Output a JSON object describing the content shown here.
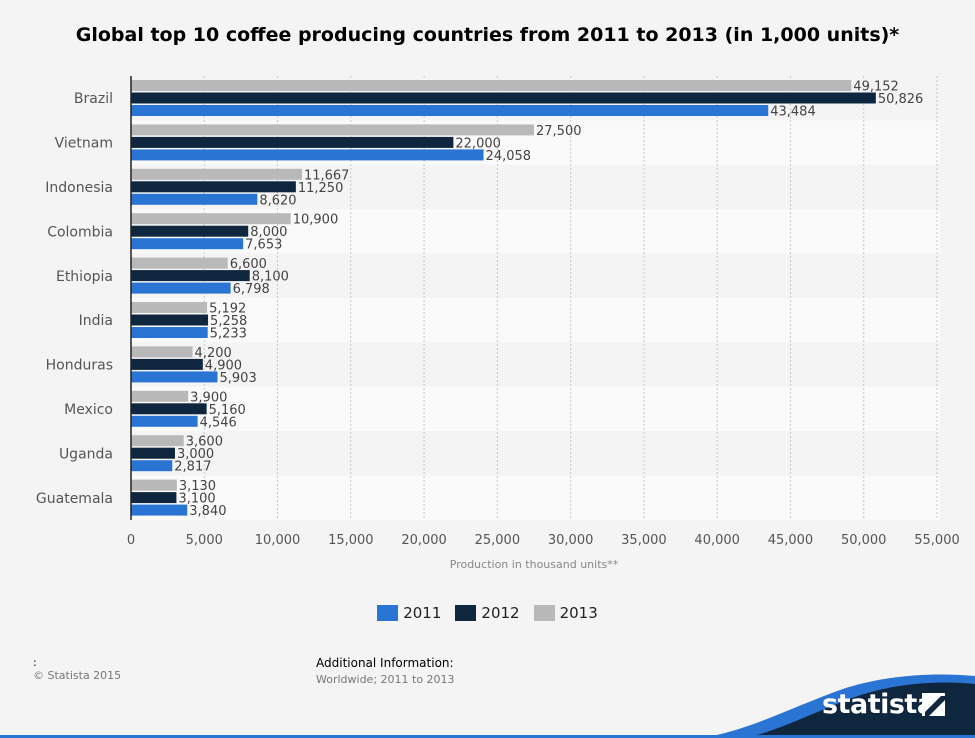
{
  "chart_data": {
    "type": "bar",
    "orientation": "horizontal",
    "title": "Global top 10 coffee producing countries from 2011 to 2013 (in 1,000 units)*",
    "xlabel": "Production in thousand units**",
    "ylabel": "",
    "xlim": [
      0,
      55000
    ],
    "xticks": [
      0,
      5000,
      10000,
      15000,
      20000,
      25000,
      30000,
      35000,
      40000,
      45000,
      50000,
      55000
    ],
    "xtick_labels": [
      "0",
      "5,000",
      "10,000",
      "15,000",
      "20,000",
      "25,000",
      "30,000",
      "35,000",
      "40,000",
      "45,000",
      "50,000",
      "55,000"
    ],
    "grid": true,
    "legend_position": "bottom-center",
    "categories": [
      "Brazil",
      "Vietnam",
      "Indonesia",
      "Colombia",
      "Ethiopia",
      "India",
      "Honduras",
      "Mexico",
      "Uganda",
      "Guatemala"
    ],
    "series": [
      {
        "name": "2013",
        "color": "#b9b9b9",
        "values": [
          49152,
          27500,
          11667,
          10900,
          6600,
          5192,
          4200,
          3900,
          3600,
          3130
        ],
        "labels": [
          "49,152",
          "27,500",
          "11,667",
          "10,900",
          "6,600",
          "5,192",
          "4,200",
          "3,900",
          "3,600",
          "3,130"
        ]
      },
      {
        "name": "2012",
        "color": "#0f263f",
        "values": [
          50826,
          22000,
          11250,
          8000,
          8100,
          5258,
          4900,
          5160,
          3000,
          3100
        ],
        "labels": [
          "50,826",
          "22,000",
          "11,250",
          "8,000",
          "8,100",
          "5,258",
          "4,900",
          "5,160",
          "3,000",
          "3,100"
        ]
      },
      {
        "name": "2011",
        "color": "#2a74d4",
        "values": [
          43484,
          24058,
          8620,
          7653,
          6798,
          5233,
          5903,
          4546,
          2817,
          3840
        ],
        "labels": [
          "43,484",
          "24,058",
          "8,620",
          "7,653",
          "6,798",
          "5,233",
          "5,903",
          "4,546",
          "2,817",
          "3,840"
        ]
      }
    ],
    "legend_order": [
      "2011",
      "2012",
      "2013"
    ]
  },
  "footer": {
    "colon": ":",
    "copyright": "© Statista 2015",
    "additional_title": "Additional Information:",
    "additional_text": "Worldwide; 2011 to 2013"
  },
  "brand": {
    "name": "statista",
    "icon": "statista-logo-icon",
    "band_color": "#0f263f",
    "accent_color": "#2a74d4"
  }
}
